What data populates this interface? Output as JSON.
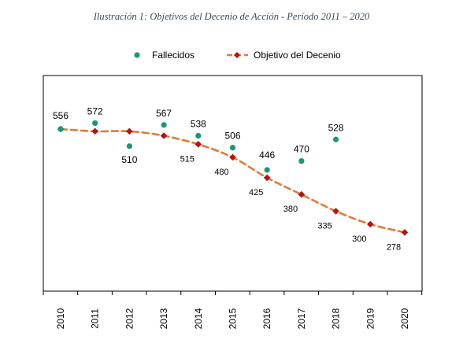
{
  "title": "Ilustración 1: Objetivos del Decenio de Acción - Período 2011 – 2020",
  "chart_data": {
    "type": "line",
    "title": "Ilustración 1: Objetivos del Decenio de Acción - Período 2011 – 2020",
    "xlabel": "",
    "ylabel": "",
    "categories": [
      "2010",
      "2011",
      "2012",
      "2013",
      "2014",
      "2015",
      "2016",
      "2017",
      "2018",
      "2019",
      "2020"
    ],
    "ylim": [
      120,
      700
    ],
    "grid": false,
    "legend_position": "top",
    "series": [
      {
        "name": "Fallecidos",
        "kind": "scatter",
        "color": "#1a9a6c",
        "points": [
          {
            "x": "2010",
            "y": 556,
            "label": "556"
          },
          {
            "x": "2011",
            "y": 572,
            "label": "572"
          },
          {
            "x": "2012",
            "y": 510,
            "label": "510"
          },
          {
            "x": "2013",
            "y": 567,
            "label": "567"
          },
          {
            "x": "2014",
            "y": 538,
            "label": "538"
          },
          {
            "x": "2015",
            "y": 506,
            "label": "506"
          },
          {
            "x": "2016",
            "y": 446,
            "label": "446"
          },
          {
            "x": "2017",
            "y": 470,
            "label": "470"
          },
          {
            "x": "2018",
            "y": 528,
            "label": "528"
          }
        ]
      },
      {
        "name": "Objetivo del Decenio",
        "kind": "line",
        "color": "#e07b39",
        "marker_color": "#c0100d",
        "points": [
          {
            "x": "2010",
            "y": 556,
            "label": ""
          },
          {
            "x": "2011",
            "y": 550,
            "label": ""
          },
          {
            "x": "2012",
            "y": 550,
            "label": ""
          },
          {
            "x": "2013",
            "y": 538,
            "label": ""
          },
          {
            "x": "2014",
            "y": 515,
            "label": "515"
          },
          {
            "x": "2015",
            "y": 480,
            "label": "480"
          },
          {
            "x": "2016",
            "y": 425,
            "label": "425"
          },
          {
            "x": "2017",
            "y": 380,
            "label": "380"
          },
          {
            "x": "2018",
            "y": 335,
            "label": "335"
          },
          {
            "x": "2019",
            "y": 300,
            "label": "300"
          },
          {
            "x": "2020",
            "y": 278,
            "label": "278"
          }
        ]
      }
    ]
  }
}
